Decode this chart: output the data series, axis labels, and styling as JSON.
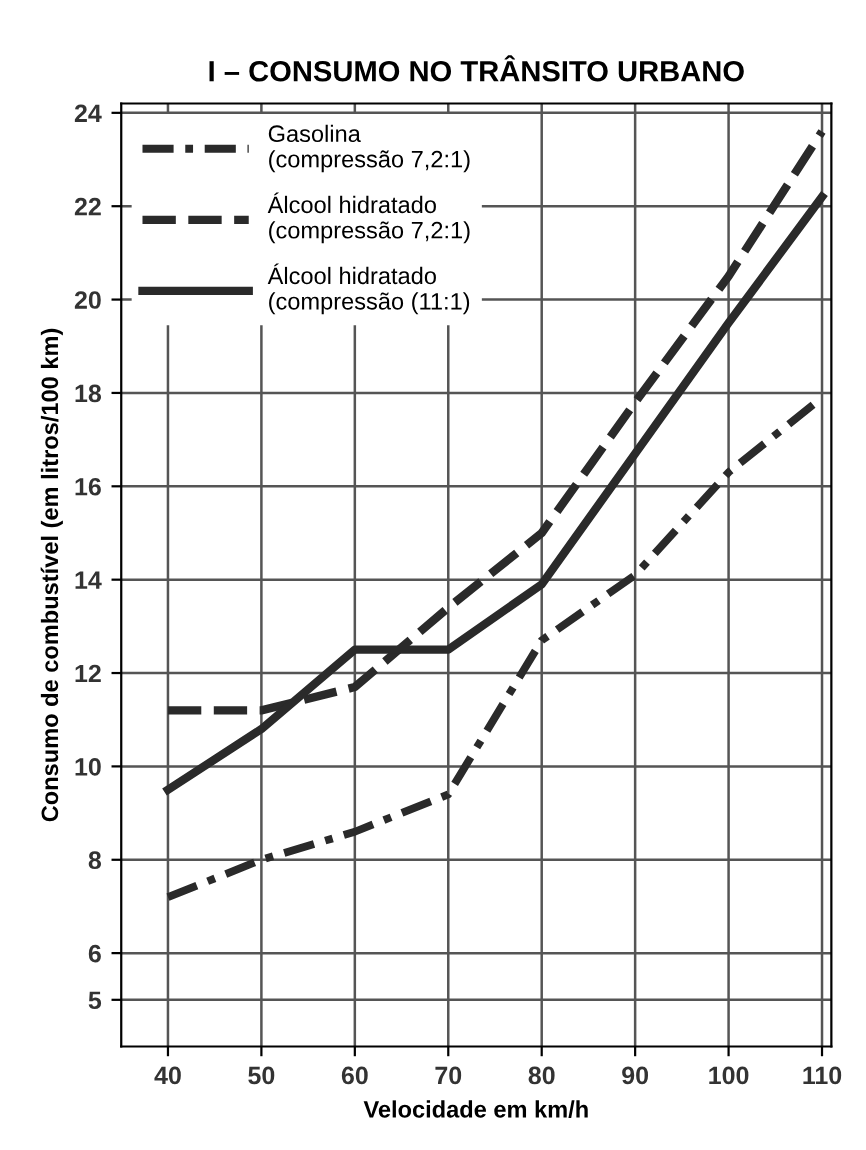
{
  "chart_data": {
    "type": "line",
    "title": "I – CONSUMO NO TRÂNSITO URBANO",
    "xlabel": "Velocidade em km/h",
    "ylabel": "Consumo de combustível (em litros/100 km)",
    "x": [
      40,
      50,
      60,
      70,
      80,
      90,
      100,
      110
    ],
    "series": [
      {
        "name": "Gasolina\n(compressão 7,2:1)",
        "color": "#2a2a2a",
        "line_style": "dashdot",
        "values": [
          7.2,
          8.0,
          8.6,
          9.4,
          12.7,
          14.1,
          16.3,
          17.9
        ]
      },
      {
        "name": "Álcool hidratado\n(compressão 7,2:1)",
        "color": "#2a2a2a",
        "line_style": "dashed",
        "values": [
          11.2,
          11.2,
          11.7,
          13.4,
          15.0,
          17.8,
          20.5,
          23.6
        ]
      },
      {
        "name": "Álcool hidratado\n(compressão (11:1)",
        "color": "#2a2a2a",
        "line_style": "solid",
        "values": [
          9.5,
          10.8,
          12.5,
          12.5,
          13.9,
          16.7,
          19.5,
          22.2
        ]
      }
    ],
    "xlim": [
      35,
      111
    ],
    "xticks": [
      40,
      50,
      60,
      70,
      80,
      90,
      100,
      110
    ],
    "ylim": [
      4,
      24.2
    ],
    "yticks": [
      5,
      6,
      8,
      10,
      12,
      14,
      16,
      18,
      20,
      22,
      24
    ],
    "grid": true,
    "legend": "top left"
  }
}
